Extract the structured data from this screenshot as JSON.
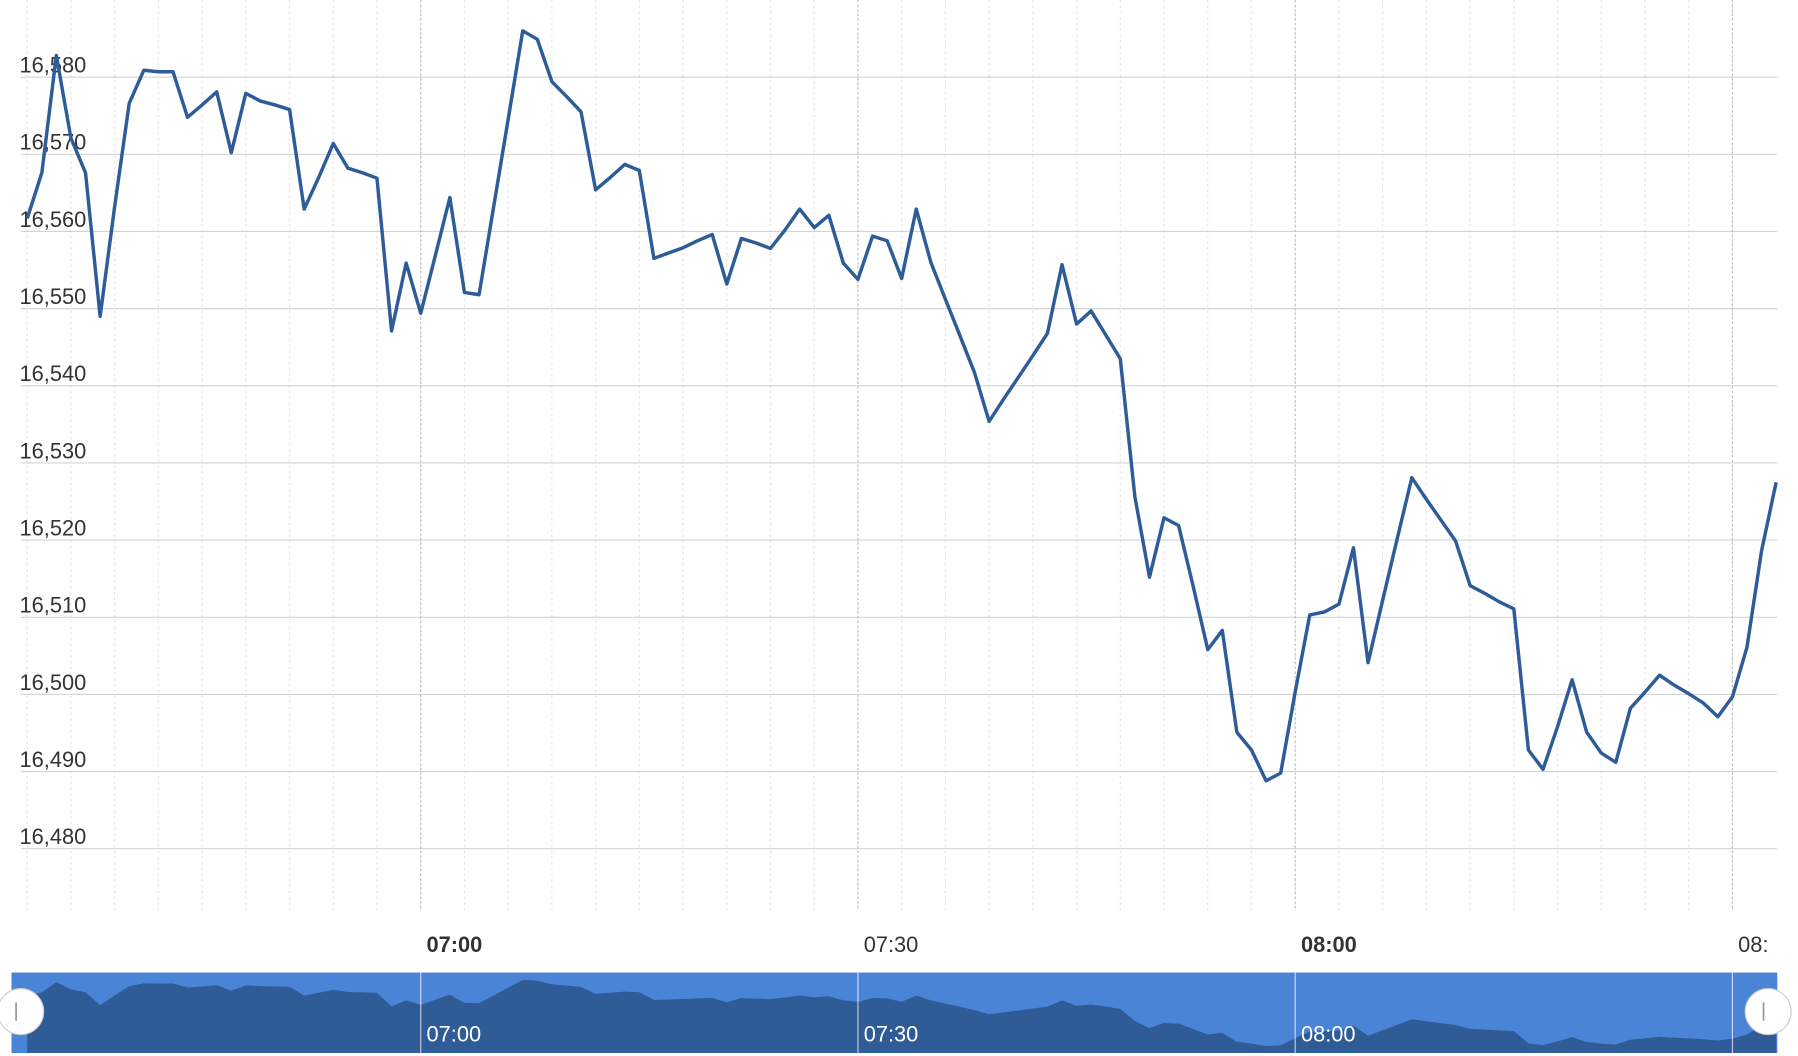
{
  "chart_data": {
    "type": "line",
    "color": "#2e5c99",
    "x": [
      "06:33",
      "06:34",
      "06:35",
      "06:36",
      "06:37",
      "06:38",
      "06:39",
      "06:40",
      "06:41",
      "06:42",
      "06:43",
      "06:44",
      "06:45",
      "06:46",
      "06:47",
      "06:48",
      "06:49",
      "06:50",
      "06:51",
      "06:52",
      "06:53",
      "06:54",
      "06:55",
      "06:56",
      "06:57",
      "06:58",
      "06:59",
      "07:00",
      "07:01",
      "07:02",
      "07:03",
      "07:04",
      "07:05",
      "07:06",
      "07:07",
      "07:08",
      "07:09",
      "07:10",
      "07:11",
      "07:12",
      "07:13",
      "07:14",
      "07:15",
      "07:16",
      "07:17",
      "07:18",
      "07:19",
      "07:20",
      "07:21",
      "07:22",
      "07:23",
      "07:24",
      "07:25",
      "07:26",
      "07:27",
      "07:28",
      "07:29",
      "07:30",
      "07:31",
      "07:32",
      "07:33",
      "07:34",
      "07:35",
      "07:36",
      "07:37",
      "07:38",
      "07:39",
      "07:40",
      "07:41",
      "07:42",
      "07:43",
      "07:44",
      "07:45",
      "07:46",
      "07:47",
      "07:48",
      "07:49",
      "07:50",
      "07:51",
      "07:52",
      "07:53",
      "07:54",
      "07:55",
      "07:56",
      "07:57",
      "07:58",
      "07:59",
      "08:00",
      "08:01",
      "08:02",
      "08:03",
      "08:04",
      "08:05",
      "08:06",
      "08:07",
      "08:08",
      "08:09",
      "08:10",
      "08:11",
      "08:12",
      "08:13",
      "08:14",
      "08:15",
      "08:16",
      "08:17",
      "08:18",
      "08:19",
      "08:20",
      "08:21",
      "08:22",
      "08:23",
      "08:24",
      "08:25",
      "08:26",
      "08:27",
      "08:28",
      "08:29",
      "08:30",
      "08:31",
      "08:32",
      "08:33"
    ],
    "values": [
      16561.7,
      16567.6,
      16582.8,
      16572.1,
      16567.6,
      16549.0,
      16563.2,
      16576.6,
      16580.9,
      16580.7,
      16580.7,
      16574.8,
      16576.4,
      16578.1,
      16570.2,
      16577.9,
      16576.9,
      16576.4,
      16575.8,
      16562.9,
      16567.0,
      16571.4,
      16568.2,
      16567.6,
      16566.9,
      16547.1,
      16555.9,
      16549.4,
      16556.9,
      16564.4,
      16552.1,
      16551.8,
      16563.2,
      16574.5,
      16586.0,
      16584.9,
      16579.4,
      16577.5,
      16575.5,
      16565.4,
      16567.0,
      16568.7,
      16567.9,
      16556.5,
      16557.2,
      16557.9,
      16558.8,
      16559.6,
      16553.2,
      16559.1,
      16558.5,
      16557.8,
      16560.2,
      16562.9,
      16560.5,
      16562.1,
      16555.9,
      16553.8,
      16559.4,
      16558.8,
      16553.9,
      16562.9,
      16556.0,
      16551.2,
      16546.5,
      16541.7,
      16535.4,
      16538.3,
      16541.1,
      16543.9,
      16546.8,
      16555.7,
      16548.0,
      16549.7,
      16546.6,
      16543.5,
      16525.6,
      16515.2,
      16522.9,
      16521.9,
      16514.0,
      16505.8,
      16508.3,
      16495.1,
      16492.8,
      16488.8,
      16489.8,
      16500.3,
      16510.3,
      16510.7,
      16511.7,
      16519.0,
      16504.1,
      16512.2,
      16520.2,
      16528.1,
      16525.3,
      16522.6,
      16519.9,
      16514.1,
      16513.1,
      16512.0,
      16511.1,
      16492.8,
      16490.3,
      16495.8,
      16501.9,
      16495.1,
      16492.4,
      16491.2,
      16498.2,
      16500.3,
      16502.5,
      16501.2,
      16500.1,
      16498.9,
      16497.1,
      16499.7,
      16506.1,
      16518.6,
      16527.5
    ],
    "xlim": [
      "06:32",
      "08:33"
    ],
    "xticks": [
      "07:00",
      "07:30",
      "08:00",
      {
        "value": "08:30",
        "label": "08:"
      }
    ],
    "ylim": [
      16472,
      16590
    ],
    "yticks": [
      {
        "value": 16480,
        "label": "16,480"
      },
      {
        "value": 16490,
        "label": "16,490"
      },
      {
        "value": 16500,
        "label": "16,500"
      },
      {
        "value": 16510,
        "label": "16,510"
      },
      {
        "value": 16520,
        "label": "16,520"
      },
      {
        "value": 16530,
        "label": "16,530"
      },
      {
        "value": 16540,
        "label": "16,540"
      },
      {
        "value": 16550,
        "label": "16,550"
      },
      {
        "value": 16560,
        "label": "16,560"
      },
      {
        "value": 16570,
        "label": "16,570"
      },
      {
        "value": 16580,
        "label": "16,580"
      }
    ],
    "grid": true
  }
}
